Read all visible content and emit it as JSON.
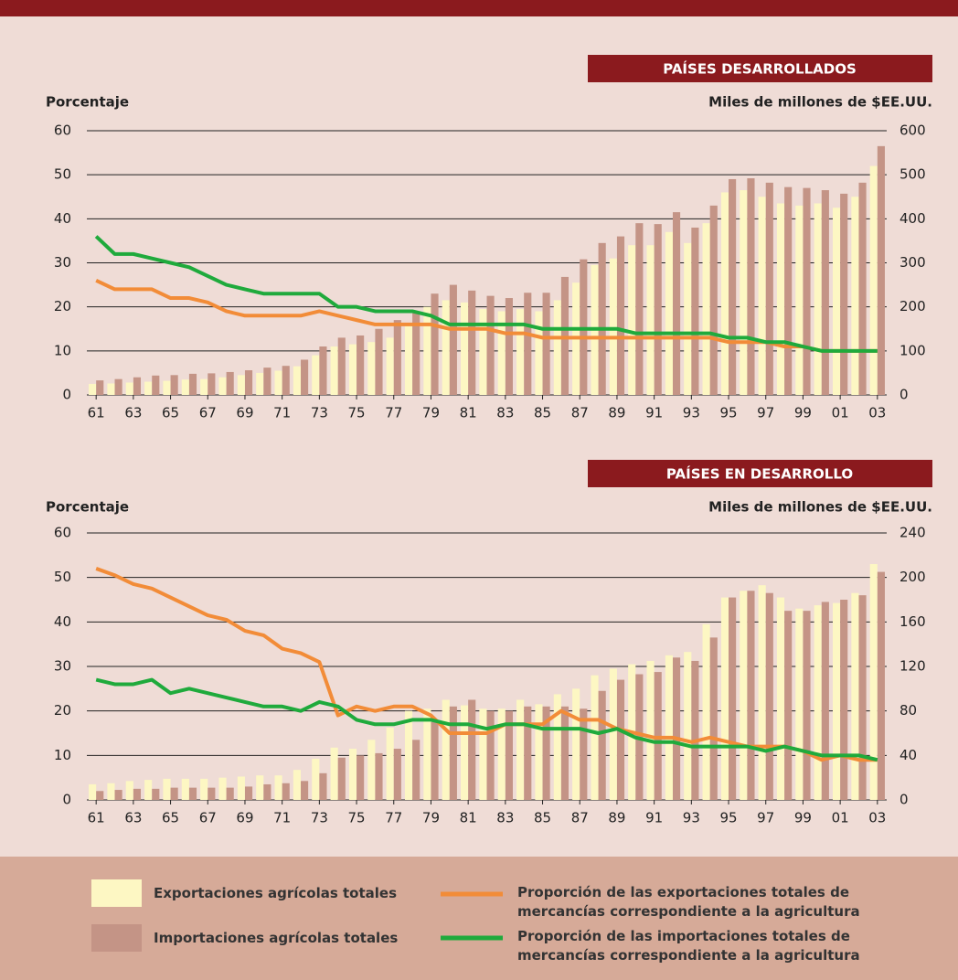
{
  "chart_data": [
    {
      "type": "bar-line",
      "title": "PAÍSES DESARROLLADOS",
      "ylabel": "Porcentaje",
      "y2label": "Miles de millones de $EE.UU.",
      "categories": [
        "61",
        null,
        "63",
        null,
        "65",
        null,
        "67",
        null,
        "69",
        null,
        "71",
        null,
        "73",
        null,
        "75",
        null,
        "77",
        null,
        "79",
        null,
        "81",
        null,
        "83",
        null,
        "85",
        null,
        "87",
        null,
        "89",
        null,
        "91",
        null,
        "93",
        null,
        "95",
        null,
        "97",
        null,
        "99",
        null,
        "01",
        null,
        "03"
      ],
      "ylim": [
        0,
        60
      ],
      "yticks": [
        0,
        10,
        20,
        30,
        40,
        50,
        60
      ],
      "y2lim": [
        0,
        600
      ],
      "y2ticks": [
        0,
        100,
        200,
        300,
        400,
        500,
        600
      ],
      "grid": true,
      "series": [
        {
          "name": "Exportaciones agrícolas totales",
          "kind": "bar",
          "axis": "y2",
          "color": "#fdf7c3",
          "values": [
            25,
            26,
            28,
            30,
            32,
            35,
            36,
            40,
            45,
            50,
            55,
            65,
            90,
            110,
            115,
            120,
            130,
            160,
            200,
            215,
            210,
            195,
            190,
            195,
            190,
            215,
            255,
            295,
            310,
            340,
            340,
            370,
            345,
            390,
            460,
            465,
            450,
            435,
            430,
            435,
            425,
            450,
            520
          ]
        },
        {
          "name": "Importaciones agrícolas totales",
          "kind": "bar",
          "axis": "y2",
          "color": "#c49486",
          "values": [
            33,
            36,
            40,
            44,
            45,
            48,
            49,
            52,
            56,
            62,
            66,
            80,
            110,
            130,
            135,
            150,
            170,
            190,
            230,
            250,
            237,
            225,
            220,
            232,
            232,
            268,
            308,
            345,
            360,
            390,
            388,
            415,
            380,
            430,
            490,
            492,
            482,
            472,
            470,
            465,
            457,
            482,
            565
          ]
        },
        {
          "name": "Proporción de las exportaciones totales de mercancías correspondiente a la agricultura",
          "kind": "line",
          "color": "#f28c38",
          "values": [
            26,
            24,
            24,
            24,
            22,
            22,
            21,
            19,
            18,
            18,
            18,
            18,
            19,
            18,
            17,
            16,
            16,
            16,
            16,
            15,
            15,
            15,
            14,
            14,
            13,
            13,
            13,
            13,
            13,
            13,
            13,
            13,
            13,
            13,
            12,
            12,
            12,
            11,
            11,
            10,
            10,
            10,
            10
          ]
        },
        {
          "name": "Proporción de las importaciones totales de mercancías correspondiente a la agricultura",
          "kind": "line",
          "color": "#1faa3c",
          "values": [
            36,
            32,
            32,
            31,
            30,
            29,
            27,
            25,
            24,
            23,
            23,
            23,
            23,
            20,
            20,
            19,
            19,
            19,
            18,
            16,
            16,
            16,
            16,
            16,
            15,
            15,
            15,
            15,
            15,
            14,
            14,
            14,
            14,
            14,
            13,
            13,
            12,
            12,
            11,
            10,
            10,
            10,
            10
          ]
        }
      ]
    },
    {
      "type": "bar-line",
      "title": "PAÍSES EN DESARROLLO",
      "ylabel": "Porcentaje",
      "y2label": "Miles de millones de $EE.UU.",
      "categories": [
        "61",
        null,
        "63",
        null,
        "65",
        null,
        "67",
        null,
        "69",
        null,
        "71",
        null,
        "73",
        null,
        "75",
        null,
        "77",
        null,
        "79",
        null,
        "81",
        null,
        "83",
        null,
        "85",
        null,
        "87",
        null,
        "89",
        null,
        "91",
        null,
        "93",
        null,
        "95",
        null,
        "97",
        null,
        "99",
        null,
        "01",
        null,
        "03"
      ],
      "ylim": [
        0,
        60
      ],
      "yticks": [
        0,
        10,
        20,
        30,
        40,
        50,
        60
      ],
      "y2lim": [
        0,
        240
      ],
      "y2ticks": [
        0,
        40,
        80,
        120,
        160,
        200,
        240
      ],
      "grid": true,
      "series": [
        {
          "kind": "bar",
          "axis": "y2",
          "color": "#fdf7c3",
          "values": [
            14,
            15,
            17,
            18,
            19,
            19,
            19,
            20,
            21,
            22,
            22,
            27,
            37,
            47,
            46,
            54,
            65,
            80,
            82,
            90,
            85,
            82,
            82,
            90,
            86,
            95,
            100,
            112,
            118,
            122,
            125,
            130,
            133,
            158,
            182,
            188,
            193,
            182,
            172,
            175,
            177,
            186,
            212
          ]
        },
        {
          "kind": "bar",
          "axis": "y2",
          "color": "#c49486",
          "values": [
            8,
            9,
            10,
            10,
            11,
            11,
            11,
            11,
            12,
            14,
            15,
            17,
            24,
            38,
            40,
            42,
            46,
            54,
            70,
            84,
            90,
            80,
            80,
            84,
            84,
            84,
            82,
            98,
            108,
            113,
            115,
            128,
            125,
            146,
            182,
            188,
            186,
            170,
            170,
            178,
            180,
            184,
            205
          ]
        },
        {
          "kind": "line",
          "color": "#f28c38",
          "values": [
            52,
            50.5,
            48.5,
            47.5,
            45.5,
            43.5,
            41.5,
            40.5,
            38,
            37,
            34,
            33,
            31,
            19,
            21,
            20,
            21,
            21,
            19,
            15,
            15,
            15,
            17,
            17,
            17,
            20,
            18,
            18,
            16,
            15,
            14,
            14,
            13,
            14,
            13,
            12,
            12,
            12,
            11,
            9,
            10,
            9,
            9
          ]
        },
        {
          "kind": "line",
          "color": "#1faa3c",
          "values": [
            27,
            26,
            26,
            27,
            24,
            25,
            24,
            23,
            22,
            21,
            21,
            20,
            22,
            21,
            18,
            17,
            17,
            18,
            18,
            17,
            17,
            16,
            17,
            17,
            16,
            16,
            16,
            15,
            16,
            14,
            13,
            13,
            12,
            12,
            12,
            12,
            11,
            12,
            11,
            10,
            10,
            10,
            9
          ]
        }
      ]
    }
  ]
}
